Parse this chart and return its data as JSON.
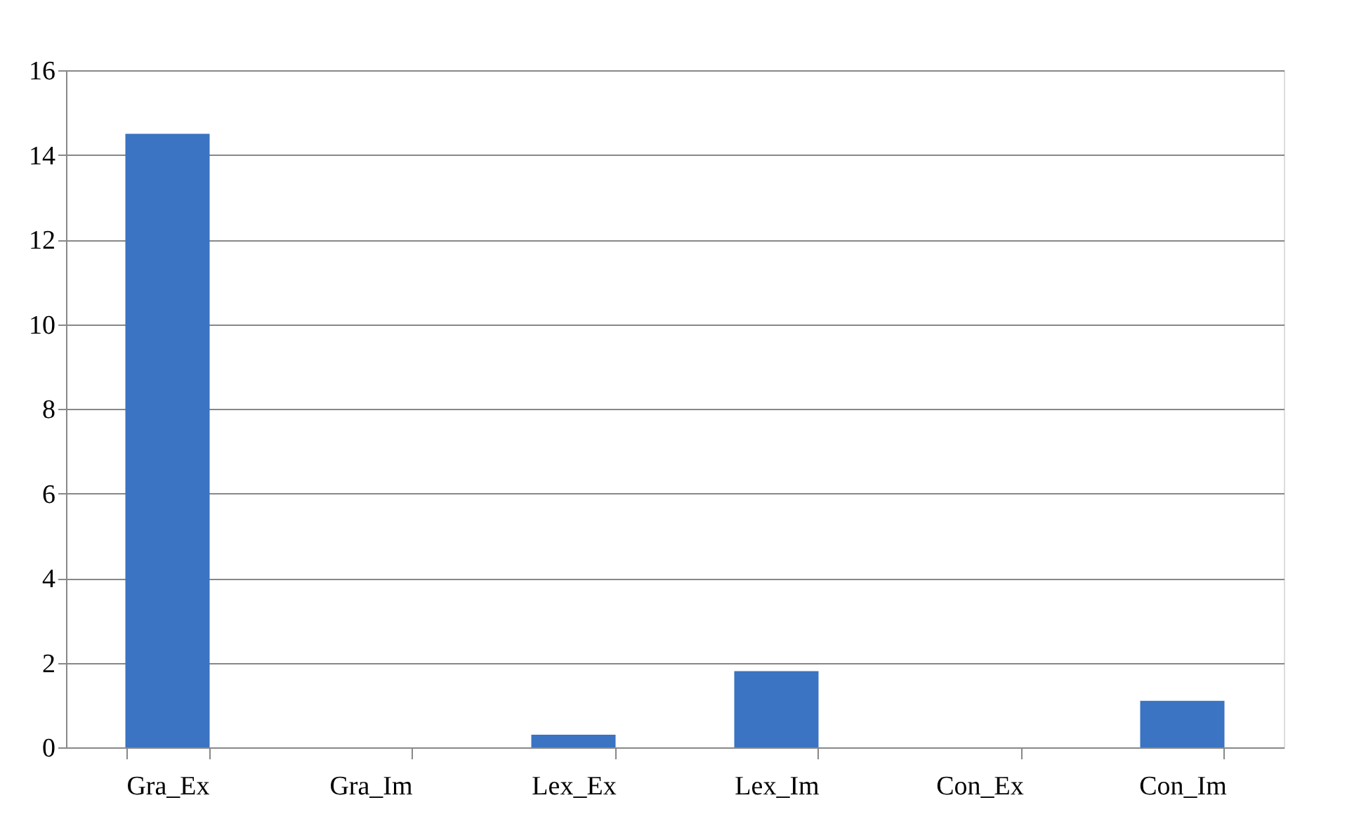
{
  "chart_data": {
    "type": "bar",
    "categories": [
      "Gra_Ex",
      "Gra_Im",
      "Lex_Ex",
      "Lex_Im",
      "Con_Ex",
      "Con_Im"
    ],
    "values": [
      14.5,
      0,
      0.3,
      1.8,
      0,
      1.1
    ],
    "color": "#3a74c2",
    "ylim": [
      0,
      16
    ],
    "yticks": [
      0,
      2,
      4,
      6,
      8,
      10,
      12,
      14,
      16
    ],
    "grid": "y"
  }
}
